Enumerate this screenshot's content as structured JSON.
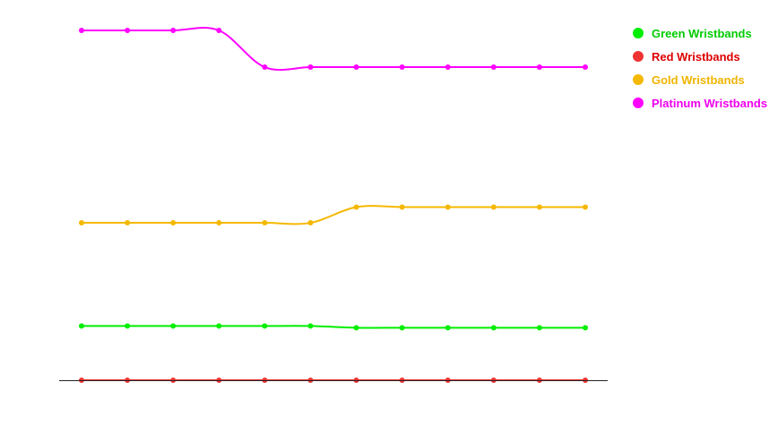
{
  "chart_data": {
    "type": "line",
    "title": "",
    "xlabel": "",
    "ylabel": "",
    "grid": false,
    "legend_position": "top-right",
    "x": [
      1,
      2,
      3,
      4,
      5,
      6,
      7,
      8,
      9,
      10,
      11,
      12
    ],
    "ylim": [
      0,
      100
    ],
    "series": [
      {
        "name": "Green Wristbands",
        "color": "#00ee00",
        "values": [
          15.5,
          15.5,
          15.5,
          15.5,
          15.5,
          15.5,
          15,
          15,
          15,
          15,
          15,
          15
        ]
      },
      {
        "name": "Red Wristbands",
        "color": "#ee3333",
        "values": [
          0,
          0,
          0,
          0,
          0,
          0,
          0,
          0,
          0,
          0,
          0,
          0
        ]
      },
      {
        "name": "Gold Wristbands",
        "color": "#f5b800",
        "values": [
          45,
          45,
          45,
          45,
          45,
          45,
          49.5,
          49.5,
          49.5,
          49.5,
          49.5,
          49.5
        ]
      },
      {
        "name": "Platinum Wristbands",
        "color": "#ff00ff",
        "values": [
          100,
          100,
          100,
          100,
          89.5,
          89.5,
          89.5,
          89.5,
          89.5,
          89.5,
          89.5,
          89.5
        ]
      }
    ]
  },
  "legend_label_colors": [
    "#00cc00",
    "#dd0000",
    "#f0b400",
    "#ee00ee"
  ]
}
